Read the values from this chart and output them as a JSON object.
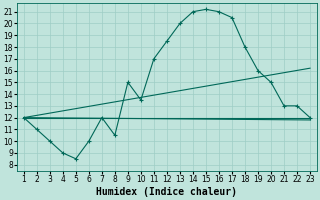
{
  "background_color": "#c0e4dc",
  "grid_color": "#9ecec6",
  "line_color": "#006858",
  "xlabel": "Humidex (Indice chaleur)",
  "xlabel_fontsize": 7,
  "tick_fontsize": 5.5,
  "xlim": [
    0.5,
    23.5
  ],
  "ylim": [
    7.5,
    21.7
  ],
  "xticks": [
    1,
    2,
    3,
    4,
    5,
    6,
    7,
    8,
    9,
    10,
    11,
    12,
    13,
    14,
    15,
    16,
    17,
    18,
    19,
    20,
    21,
    22,
    23
  ],
  "yticks": [
    8,
    9,
    10,
    11,
    12,
    13,
    14,
    15,
    16,
    17,
    18,
    19,
    20,
    21
  ],
  "main_series": {
    "x": [
      1,
      2,
      3,
      4,
      5,
      6,
      7,
      8,
      9,
      10,
      11,
      12,
      13,
      14,
      15,
      16,
      17,
      18,
      19,
      20,
      21,
      22,
      23
    ],
    "y": [
      12,
      11,
      10,
      9,
      8.5,
      10,
      12,
      10.5,
      15,
      13.5,
      17,
      18.5,
      20,
      21,
      21.2,
      21,
      20.5,
      18,
      16,
      15,
      13,
      13,
      12
    ]
  },
  "trend_lines": [
    {
      "x": [
        1,
        23
      ],
      "y": [
        12,
        12.0
      ]
    },
    {
      "x": [
        1,
        23
      ],
      "y": [
        12,
        16.2
      ]
    },
    {
      "x": [
        1,
        23
      ],
      "y": [
        12,
        11.8
      ]
    }
  ]
}
